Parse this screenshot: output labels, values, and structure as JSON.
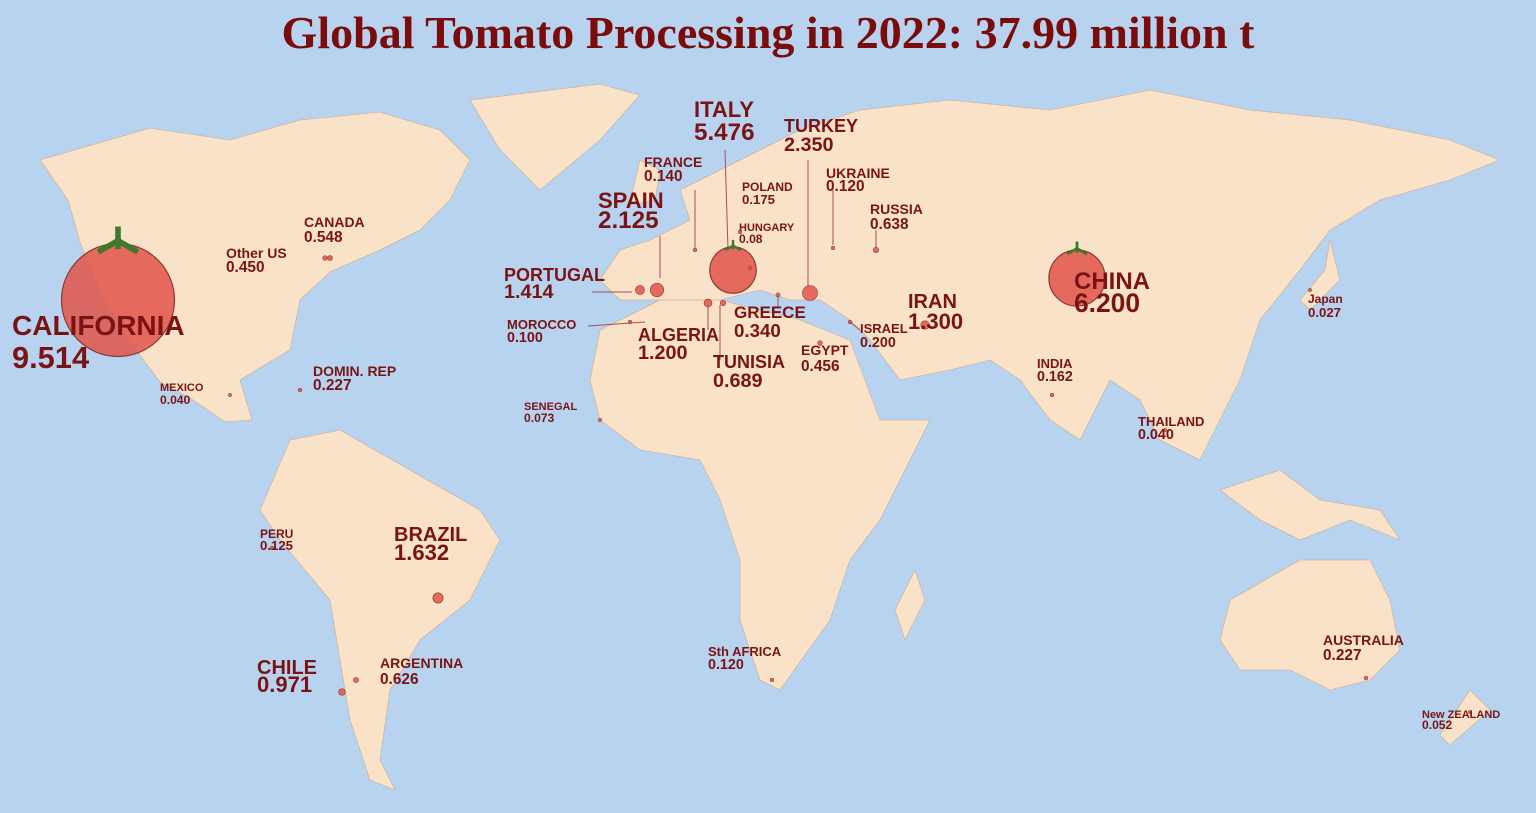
{
  "title": "Global Tomato Processing in 2022: 37.99 million t",
  "regions": [
    {
      "name": "CALIFORNIA",
      "value": 9.514,
      "label": "9.514"
    },
    {
      "name": "Other US",
      "value": 0.45,
      "label": "0.450"
    },
    {
      "name": "CANADA",
      "value": 0.548,
      "label": "0.548"
    },
    {
      "name": "MEXICO",
      "value": 0.04,
      "label": "0.040"
    },
    {
      "name": "DOMIN. REP",
      "value": 0.227,
      "label": "0.227"
    },
    {
      "name": "PERU",
      "value": 0.125,
      "label": "0.125"
    },
    {
      "name": "BRAZIL",
      "value": 1.632,
      "label": "1.632"
    },
    {
      "name": "CHILE",
      "value": 0.971,
      "label": "0.971"
    },
    {
      "name": "ARGENTINA",
      "value": 0.626,
      "label": "0.626"
    },
    {
      "name": "SENEGAL",
      "value": 0.073,
      "label": "0.073"
    },
    {
      "name": "MOROCCO",
      "value": 0.1,
      "label": "0.100"
    },
    {
      "name": "PORTUGAL",
      "value": 1.414,
      "label": "1.414"
    },
    {
      "name": "SPAIN",
      "value": 2.125,
      "label": "2.125"
    },
    {
      "name": "FRANCE",
      "value": 0.14,
      "label": "0.140"
    },
    {
      "name": "ITALY",
      "value": 5.476,
      "label": "5.476"
    },
    {
      "name": "POLAND",
      "value": 0.175,
      "label": "0.175"
    },
    {
      "name": "HUNGARY",
      "value": 0.08,
      "label": "0.08"
    },
    {
      "name": "TURKEY",
      "value": 2.35,
      "label": "2.350"
    },
    {
      "name": "UKRAINE",
      "value": 0.12,
      "label": "0.120"
    },
    {
      "name": "RUSSIA",
      "value": 0.638,
      "label": "0.638"
    },
    {
      "name": "ALGERIA",
      "value": 1.2,
      "label": "1.200"
    },
    {
      "name": "TUNISIA",
      "value": 0.689,
      "label": "0.689"
    },
    {
      "name": "GREECE",
      "value": 0.34,
      "label": "0.340"
    },
    {
      "name": "EGYPT",
      "value": 0.456,
      "label": "0.456"
    },
    {
      "name": "ISRAEL",
      "value": 0.2,
      "label": "0.200"
    },
    {
      "name": "IRAN",
      "value": 1.3,
      "label": "1.300"
    },
    {
      "name": "CHINA",
      "value": 6.2,
      "label": "6.200"
    },
    {
      "name": "INDIA",
      "value": 0.162,
      "label": "0.162"
    },
    {
      "name": "THAILAND",
      "value": 0.04,
      "label": "0.040"
    },
    {
      "name": "Japan",
      "value": 0.027,
      "label": "0.027"
    },
    {
      "name": "AUSTRALIA",
      "value": 0.227,
      "label": "0.227"
    },
    {
      "name": "Sth AFRICA",
      "value": 0.12,
      "label": "0.120"
    },
    {
      "name": "New ZEALAND",
      "value": 0.052,
      "label": "0.052"
    }
  ]
}
